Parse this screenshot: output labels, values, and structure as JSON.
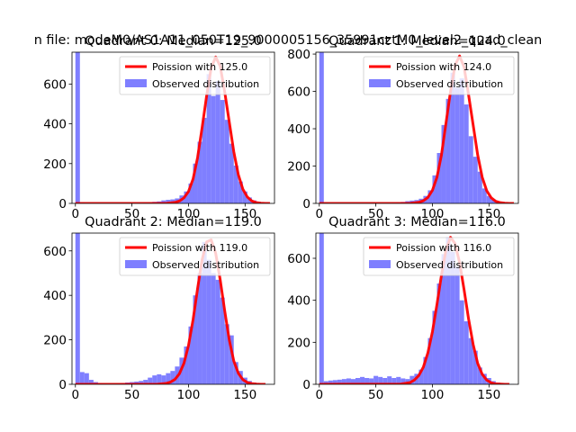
{
  "suptitle": "n file: modeM0/AS1A11_050T19_9000005156_35991cztM0_level2_quad_clean",
  "colors": {
    "hist": "#7f7fff",
    "fit": "#ff0000",
    "axis": "#000000"
  },
  "legend_labels": {
    "observed": "Observed distribution"
  },
  "chart_data": [
    {
      "type": "bar",
      "title": "Quadrant 0: Median=125.0",
      "median": 125.0,
      "poisson_label": "Poission with 125.0",
      "xlim": [
        -3,
        176
      ],
      "ylim": [
        0,
        760
      ],
      "xticks": [
        0,
        50,
        100,
        150
      ],
      "yticks": [
        0,
        200,
        400,
        600
      ],
      "bin_width": 4,
      "hist": {
        "x": [
          0,
          4,
          8,
          12,
          16,
          20,
          24,
          28,
          32,
          36,
          40,
          44,
          48,
          52,
          56,
          60,
          64,
          68,
          72,
          76,
          80,
          84,
          88,
          92,
          96,
          100,
          104,
          108,
          112,
          116,
          120,
          124,
          128,
          132,
          136,
          140,
          144,
          148,
          152,
          156,
          160,
          164,
          168
        ],
        "values": [
          760,
          5,
          2,
          2,
          1,
          1,
          1,
          1,
          1,
          1,
          2,
          2,
          2,
          3,
          3,
          4,
          6,
          8,
          10,
          15,
          18,
          20,
          25,
          40,
          60,
          100,
          200,
          310,
          430,
          650,
          540,
          615,
          520,
          420,
          300,
          190,
          110,
          60,
          30,
          15,
          8,
          3,
          1
        ]
      },
      "fit": {
        "x": [
          0,
          80,
          88,
          92,
          96,
          100,
          104,
          108,
          112,
          116,
          120,
          124,
          128,
          132,
          136,
          140,
          144,
          148,
          152,
          156,
          160,
          164,
          168,
          172
        ],
        "values": [
          0,
          0,
          5,
          12,
          28,
          60,
          122,
          230,
          380,
          540,
          680,
          736,
          690,
          560,
          410,
          260,
          145,
          72,
          32,
          12,
          4,
          1,
          0,
          0
        ]
      }
    },
    {
      "type": "bar",
      "title": "Quadrant 1: Median=124.0",
      "median": 124.0,
      "poisson_label": "Poission with 124.0",
      "xlim": [
        -3,
        176
      ],
      "ylim": [
        0,
        810
      ],
      "xticks": [
        0,
        50,
        100,
        150
      ],
      "yticks": [
        0,
        200,
        400,
        600,
        800
      ],
      "bin_width": 4,
      "hist": {
        "x": [
          0,
          4,
          8,
          12,
          16,
          20,
          24,
          28,
          32,
          36,
          40,
          44,
          48,
          52,
          56,
          60,
          64,
          68,
          72,
          76,
          80,
          84,
          88,
          92,
          96,
          100,
          104,
          108,
          112,
          116,
          120,
          124,
          128,
          132,
          136,
          140,
          144,
          148,
          152,
          156,
          160,
          164,
          168
        ],
        "values": [
          810,
          4,
          1,
          1,
          1,
          1,
          1,
          1,
          1,
          1,
          1,
          1,
          2,
          2,
          2,
          3,
          4,
          6,
          8,
          12,
          15,
          18,
          25,
          40,
          70,
          150,
          270,
          420,
          560,
          700,
          620,
          670,
          530,
          360,
          250,
          170,
          80,
          40,
          20,
          10,
          5,
          2,
          1
        ]
      },
      "fit": {
        "x": [
          0,
          80,
          88,
          92,
          96,
          100,
          104,
          108,
          112,
          116,
          120,
          124,
          128,
          132,
          136,
          140,
          144,
          148,
          152,
          156,
          160,
          164,
          168,
          172
        ],
        "values": [
          0,
          0,
          6,
          14,
          32,
          70,
          140,
          260,
          430,
          600,
          740,
          790,
          730,
          580,
          420,
          260,
          140,
          68,
          30,
          11,
          4,
          1,
          0,
          0
        ]
      }
    },
    {
      "type": "bar",
      "title": "Quadrant 2: Median=119.0",
      "median": 119.0,
      "poisson_label": "Poission with 119.0",
      "xlim": [
        -3,
        176
      ],
      "ylim": [
        0,
        680
      ],
      "xticks": [
        0,
        50,
        100,
        150
      ],
      "yticks": [
        0,
        200,
        400,
        600
      ],
      "bin_width": 4,
      "hist": {
        "x": [
          0,
          4,
          8,
          12,
          16,
          20,
          24,
          28,
          32,
          36,
          40,
          44,
          48,
          52,
          56,
          60,
          64,
          68,
          72,
          76,
          80,
          84,
          88,
          92,
          96,
          100,
          104,
          108,
          112,
          116,
          120,
          124,
          128,
          132,
          136,
          140,
          144,
          148,
          152,
          156,
          160,
          164,
          168
        ],
        "values": [
          680,
          55,
          50,
          20,
          10,
          5,
          3,
          2,
          2,
          3,
          5,
          8,
          10,
          12,
          15,
          20,
          30,
          40,
          45,
          40,
          50,
          60,
          80,
          120,
          170,
          260,
          400,
          500,
          640,
          560,
          500,
          470,
          390,
          270,
          220,
          100,
          60,
          30,
          15,
          8,
          4,
          2,
          1
        ]
      },
      "fit": {
        "x": [
          0,
          72,
          80,
          84,
          88,
          92,
          96,
          100,
          104,
          108,
          112,
          116,
          120,
          124,
          128,
          132,
          136,
          140,
          144,
          148,
          152,
          156,
          160,
          164,
          168
        ],
        "values": [
          0,
          0,
          4,
          10,
          22,
          48,
          95,
          175,
          290,
          430,
          560,
          640,
          650,
          590,
          470,
          330,
          200,
          105,
          50,
          21,
          8,
          3,
          1,
          0,
          0
        ]
      }
    },
    {
      "type": "bar",
      "title": "Quadrant 3: Median=116.0",
      "median": 116.0,
      "poisson_label": "Poission with 116.0",
      "xlim": [
        -3,
        176
      ],
      "ylim": [
        0,
        720
      ],
      "xticks": [
        0,
        50,
        100,
        150
      ],
      "yticks": [
        0,
        200,
        400,
        600
      ],
      "bin_width": 4,
      "hist": {
        "x": [
          0,
          4,
          8,
          12,
          16,
          20,
          24,
          28,
          32,
          36,
          40,
          44,
          48,
          52,
          56,
          60,
          64,
          68,
          72,
          76,
          80,
          84,
          88,
          92,
          96,
          100,
          104,
          108,
          112,
          116,
          120,
          124,
          128,
          132,
          136,
          140,
          144,
          148,
          152,
          156,
          160,
          164,
          168
        ],
        "values": [
          720,
          15,
          18,
          20,
          22,
          25,
          28,
          25,
          30,
          35,
          30,
          28,
          40,
          35,
          30,
          38,
          30,
          35,
          28,
          25,
          40,
          50,
          70,
          130,
          220,
          350,
          480,
          620,
          700,
          630,
          560,
          400,
          300,
          220,
          160,
          80,
          50,
          30,
          15,
          8,
          4,
          2,
          1
        ]
      },
      "fit": {
        "x": [
          0,
          72,
          80,
          84,
          88,
          92,
          96,
          100,
          104,
          108,
          112,
          116,
          120,
          124,
          128,
          132,
          136,
          140,
          144,
          148,
          152,
          156,
          160,
          164,
          168
        ],
        "values": [
          0,
          1,
          8,
          20,
          42,
          82,
          150,
          250,
          380,
          520,
          640,
          700,
          670,
          580,
          450,
          310,
          190,
          100,
          48,
          20,
          7,
          2,
          1,
          0,
          0
        ]
      }
    }
  ]
}
